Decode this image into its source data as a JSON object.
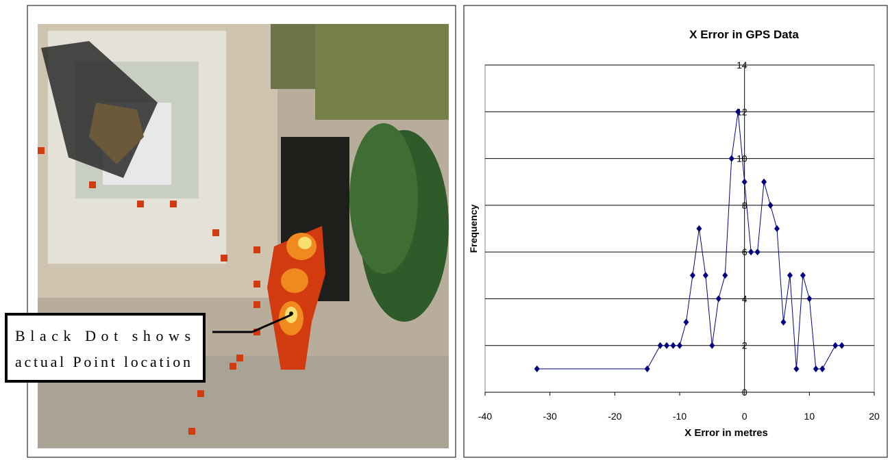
{
  "image_annotation": {
    "lines": [
      "Black Dot shows",
      "actual Point location"
    ]
  },
  "chart_data": {
    "type": "line",
    "title": "X Error in GPS Data",
    "x_label": "X Error in metres",
    "y_label": "Frequency",
    "x": [
      -32,
      -15,
      -13,
      -12,
      -11,
      -10,
      -9,
      -8,
      -7,
      -6,
      -5,
      -4,
      -3,
      -2,
      -1,
      0,
      1,
      2,
      3,
      4,
      5,
      6,
      7,
      8,
      9,
      10,
      11,
      12,
      14,
      15
    ],
    "values": [
      1,
      1,
      2,
      2,
      2,
      2,
      3,
      5,
      7,
      5,
      2,
      4,
      5,
      10,
      12,
      9,
      6,
      6,
      9,
      8,
      7,
      3,
      5,
      1,
      5,
      4,
      1,
      1,
      2,
      2
    ],
    "color": "#000080",
    "xlim": [
      -40,
      20
    ],
    "xticks": [
      -40,
      -30,
      -20,
      -10,
      0,
      10,
      20
    ],
    "ylim": [
      0,
      14
    ],
    "yticks": [
      0,
      2,
      4,
      6,
      8,
      10,
      12,
      14
    ],
    "grid": true
  }
}
